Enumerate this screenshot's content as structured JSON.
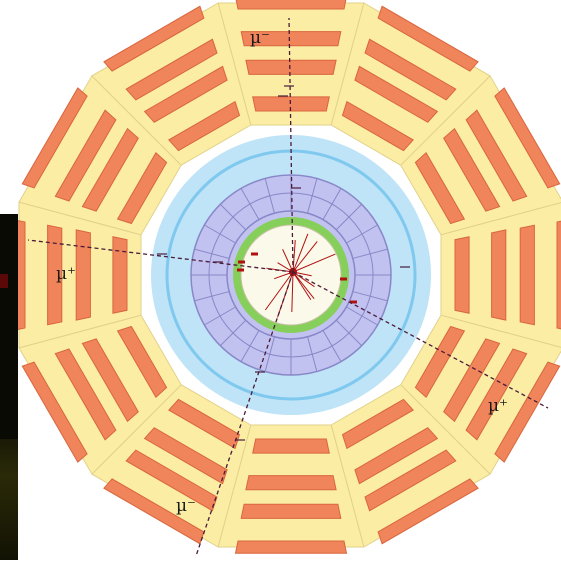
{
  "labels": {
    "muon_top": "µ⁻",
    "muon_left": "µ⁺",
    "muon_right": "µ⁺",
    "muon_bottom": "µ⁻"
  },
  "colors": {
    "muon_chamber": "#f0845a",
    "muon_chamber_edge": "#d9663d",
    "iron_yoke": "#fbeea4",
    "yoke_edge": "#e2d18a",
    "solenoid_outer": "#bfe3f7",
    "solenoid_ring": "#7fc9ef",
    "hcal": "#c2c2f0",
    "hcal_edge": "#8888c8",
    "ecal": "#86cf5a",
    "tracker": "#fbf9ea",
    "track": "#b01010",
    "muon_track": "#4a1c3a",
    "background": "#ffffff"
  }
}
